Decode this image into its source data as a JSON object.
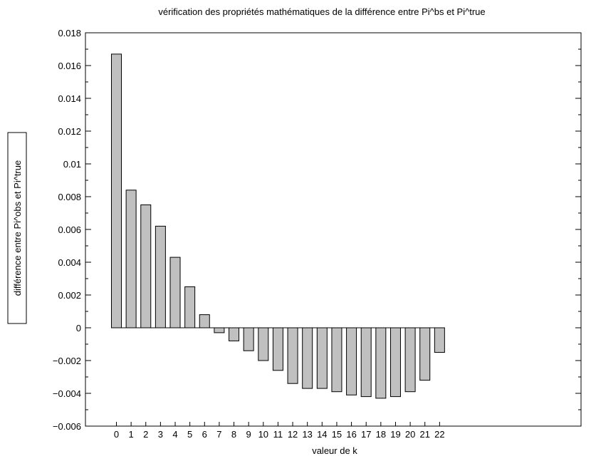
{
  "chart_data": {
    "type": "bar",
    "title": "vérification des propriétés mathématiques de la différence entre Pi^bs et Pi^true",
    "xlabel": "valeur de k",
    "ylabel": "différence entre Pi^obs et Pi^true",
    "ylim": [
      -0.006,
      0.018
    ],
    "yticks": [
      -0.006,
      -0.004,
      -0.002,
      0,
      0.002,
      0.004,
      0.006,
      0.008,
      0.01,
      0.012,
      0.014,
      0.016,
      0.018
    ],
    "ytick_labels": [
      "−0.006",
      "−0.004",
      "−0.002",
      "0",
      "0.002",
      "0.004",
      "0.006",
      "0.008",
      "0.01",
      "0.012",
      "0.014",
      "0.016",
      "0.018"
    ],
    "categories": [
      "0",
      "1",
      "2",
      "3",
      "4",
      "5",
      "6",
      "7",
      "8",
      "9",
      "10",
      "11",
      "12",
      "13",
      "14",
      "15",
      "16",
      "17",
      "18",
      "19",
      "20",
      "21",
      "22"
    ],
    "values": [
      0.0167,
      0.0084,
      0.0075,
      0.0062,
      0.0043,
      0.0025,
      0.0008,
      -0.0003,
      -0.0008,
      -0.0014,
      -0.002,
      -0.0026,
      -0.0034,
      -0.0037,
      -0.0037,
      -0.0039,
      -0.0041,
      -0.0042,
      -0.0043,
      -0.0042,
      -0.0039,
      -0.0032,
      -0.0015
    ],
    "bar_color": "#c0c0c0",
    "grid": false,
    "legend": "none"
  }
}
